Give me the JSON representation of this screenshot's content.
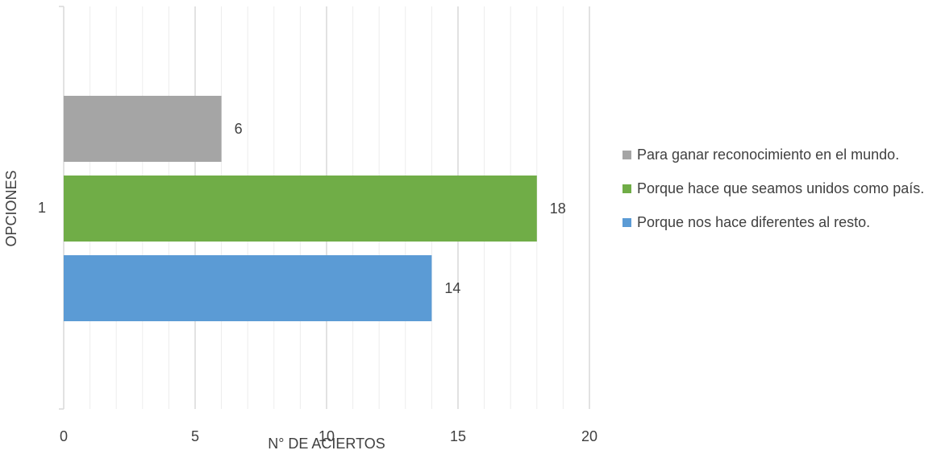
{
  "chart_data": {
    "type": "bar",
    "orientation": "horizontal",
    "categories": [
      "1"
    ],
    "series": [
      {
        "name": "Porque nos hace diferentes al resto.",
        "values": [
          14
        ],
        "color": "#5B9BD5"
      },
      {
        "name": "Porque hace que seamos unidos como país.",
        "values": [
          18
        ],
        "color": "#70AD47"
      },
      {
        "name": "Para ganar reconocimiento en el mundo.",
        "values": [
          6
        ],
        "color": "#A5A5A5"
      }
    ],
    "title": "",
    "xlabel": "N° DE ACIERTOS",
    "ylabel": "OPCIONES",
    "xlim": [
      0,
      20
    ],
    "xticks": [
      "0",
      "5",
      "10",
      "15",
      "20"
    ],
    "grid": true,
    "legend_position": "right",
    "data_labels": true
  },
  "legend": {
    "items": [
      {
        "label": "Para ganar reconocimiento en el mundo.",
        "color": "#A5A5A5"
      },
      {
        "label": "Porque hace que seamos unidos como país.",
        "color": "#70AD47"
      },
      {
        "label": "Porque nos hace diferentes al resto.",
        "color": "#5B9BD5"
      }
    ]
  }
}
